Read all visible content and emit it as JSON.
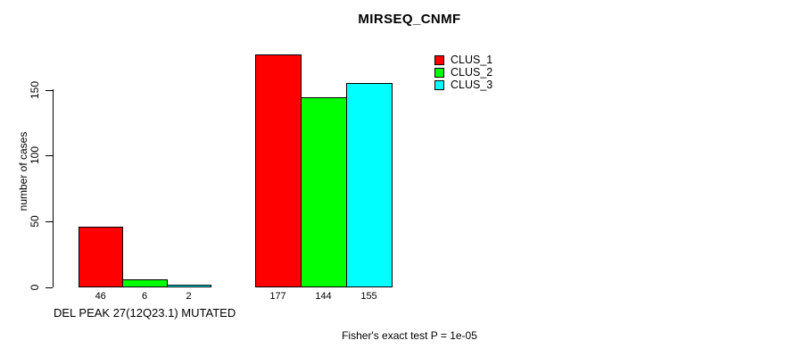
{
  "chart_data": {
    "type": "bar",
    "title": "MIRSEQ_CNMF",
    "ylabel": "number of cases",
    "xlabel": "DEL PEAK 27(12Q23.1) MUTATED",
    "group_labels": [
      "DEL PEAK 27(12Q23.1) MUTATED",
      ""
    ],
    "series": [
      {
        "name": "CLUS_1",
        "color": "#FF0000",
        "values": [
          46,
          177
        ]
      },
      {
        "name": "CLUS_2",
        "color": "#00FF00",
        "values": [
          6,
          144
        ]
      },
      {
        "name": "CLUS_3",
        "color": "#00FFFF",
        "values": [
          2,
          155
        ]
      }
    ],
    "yticks": [
      0,
      50,
      100,
      150
    ],
    "ylim": [
      0,
      180
    ],
    "grid": false,
    "bar_value_labels": true,
    "bar_border_color": "#000000",
    "legend_position": "top-right",
    "annotation": "Fisher's exact test P = 1e-05"
  },
  "colors": {
    "background": "#FFFFFF",
    "axis": "#000000",
    "text": "#000000",
    "clus1": "#FF0000",
    "clus2": "#00FF00",
    "clus3": "#00FFFF"
  }
}
